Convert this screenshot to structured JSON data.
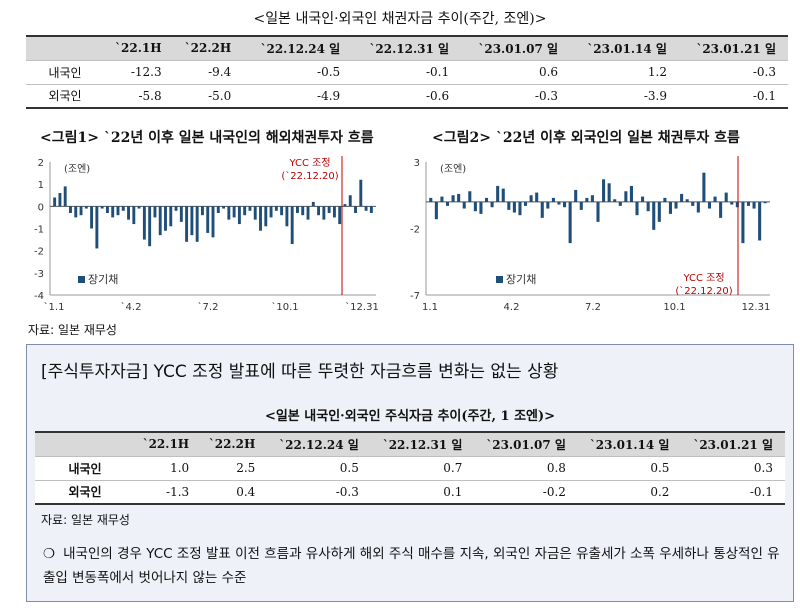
{
  "bond_table": {
    "title": "<일본 내국인·외국인 채권자금 추이(주간, 조엔)>",
    "headers": [
      "",
      "`22.1H",
      "`22.2H",
      "`22.12.24 일",
      "`22.12.31 일",
      "`23.01.07 일",
      "`23.01.14 일",
      "`23.01.21 일"
    ],
    "rows": [
      {
        "label": "내국인",
        "values": [
          "-12.3",
          "-9.4",
          "-0.5",
          "-0.1",
          "0.6",
          "1.2",
          "-0.3"
        ]
      },
      {
        "label": "외국인",
        "values": [
          "-5.8",
          "-5.0",
          "-4.9",
          "-0.6",
          "-0.3",
          "-3.9",
          "-0.1"
        ]
      }
    ]
  },
  "fig1_title": "<그림1> `22년 이후 일본 내국인의 해외채권투자 흐름",
  "fig2_title": "<그림2> `22년 이후 외국인의 일본 채권투자 흐름",
  "chart_data": [
    {
      "type": "bar",
      "unit": "(조엔)",
      "legend": "장기채",
      "legend_position": "bottom-left",
      "color": "#1f4e79",
      "ylim": [
        -4,
        2
      ],
      "yticks": [
        "2",
        "1",
        "0",
        "-1",
        "-2",
        "-3",
        "-4"
      ],
      "xtick_labels": [
        "`1.1",
        "`4.2",
        "`7.2",
        "`10.1",
        "`12.31"
      ],
      "annotation": {
        "text1": "YCC 조정",
        "text2": "(`22.12.20)",
        "color": "#c00000"
      },
      "values": [
        0.4,
        0.6,
        0.9,
        -0.3,
        -0.5,
        -0.4,
        -0.1,
        -1.0,
        -1.9,
        -0.1,
        -0.3,
        -0.5,
        -0.4,
        -0.2,
        -0.6,
        -0.8,
        -0.1,
        -1.5,
        -1.8,
        -0.5,
        -1.3,
        -1.1,
        -0.9,
        -0.2,
        -0.7,
        -1.6,
        -1.3,
        -1.6,
        -0.4,
        -1.2,
        -1.4,
        -0.3,
        -0.1,
        -0.6,
        -0.5,
        -0.8,
        -0.4,
        -0.2,
        -0.6,
        -1.1,
        -0.9,
        -0.5,
        -0.2,
        -0.4,
        -0.9,
        -1.7,
        -0.3,
        -0.4,
        -0.6,
        0.2,
        -0.4,
        -0.6,
        -0.3,
        -0.5,
        -0.8,
        0.1,
        0.5,
        -0.3,
        1.2,
        -0.2,
        -0.3
      ]
    },
    {
      "type": "bar",
      "unit": "(조엔)",
      "legend": "장기채",
      "legend_position": "bottom-left",
      "color": "#1f4e79",
      "ylim": [
        -7,
        3
      ],
      "yticks": [
        "3",
        "-2",
        "-7"
      ],
      "xtick_labels": [
        "1.1",
        "4.2",
        "7.2",
        "10.1",
        "12.31"
      ],
      "annotation": {
        "text1": "YCC 조정",
        "text2": "(`22.12.20)",
        "color": "#c00000"
      },
      "values": [
        0.3,
        -1.3,
        0.4,
        -0.3,
        0.5,
        0.6,
        -0.5,
        0.8,
        -0.7,
        -0.9,
        0.3,
        -0.4,
        1.2,
        1.0,
        -0.6,
        -0.8,
        -1.0,
        -0.3,
        0.5,
        0.7,
        -1.2,
        -0.5,
        0.3,
        -0.2,
        -0.4,
        -3.1,
        0.9,
        -0.6,
        0.3,
        0.5,
        -1.5,
        1.7,
        1.4,
        0.2,
        -0.3,
        0.8,
        1.2,
        -1.0,
        0.4,
        -0.7,
        -2.1,
        -1.5,
        0.3,
        -0.9,
        -0.5,
        0.6,
        0.2,
        -0.3,
        -0.8,
        2.2,
        -0.5,
        0.4,
        -1.2,
        0.7,
        -0.2,
        -0.4,
        -3.1,
        -0.3,
        -0.5,
        -2.9,
        -0.1
      ]
    }
  ],
  "source1": "자료: 일본 재무성",
  "box": {
    "headline": "[주식투자자금] YCC 조정 발표에 따른 뚜렷한 자금흐름 변화는 없는 상황",
    "table": {
      "title": "<일본 내국인·외국인 주식자금 추이(주간, 1 조엔)>",
      "headers": [
        "",
        "`22.1H",
        "`22.2H",
        "`22.12.24 일",
        "`22.12.31 일",
        "`23.01.07 일",
        "`23.01.14 일",
        "`23.01.21 일"
      ],
      "rows": [
        {
          "label": "내국인",
          "values": [
            "1.0",
            "2.5",
            "0.5",
            "0.7",
            "0.8",
            "0.5",
            "0.3"
          ]
        },
        {
          "label": "외국인",
          "values": [
            "-1.3",
            "0.4",
            "-0.3",
            "0.1",
            "-0.2",
            "0.2",
            "-0.1"
          ]
        }
      ]
    },
    "source": "자료: 일본 재무성",
    "bullet_symbol": "❍",
    "bullet_text": "내국인의 경우 YCC 조정 발표 이전 흐름과 유사하게 해외 주식 매수를 지속, 외국인 자금은 유출세가 소폭 우세하나 통상적인 유출입 변동폭에서 벗어나지 않는 수준"
  }
}
